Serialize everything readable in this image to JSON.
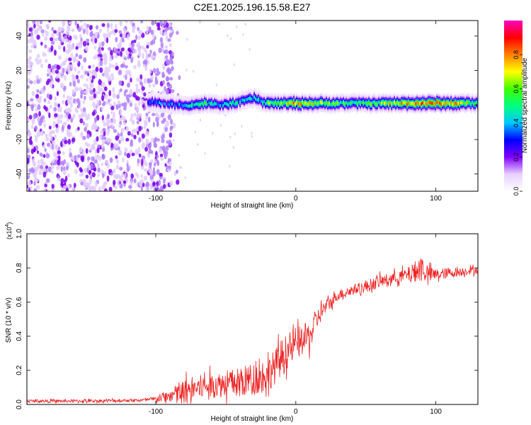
{
  "title": "C2E1.2025.196.15.58.E27",
  "chart_data": [
    {
      "type": "heatmap",
      "xlabel": "Height of straight line (km)",
      "ylabel": "Frequency (Hz)",
      "xlim": [
        -192,
        130
      ],
      "ylim": [
        -50,
        49
      ],
      "xticks": [
        -100,
        0,
        100
      ],
      "xtick_labels": [
        "-100",
        "0",
        "100"
      ],
      "yticks": [
        -40,
        -20,
        0,
        20,
        40
      ],
      "ytick_labels": [
        "-40",
        "-20",
        "0",
        "20",
        "40"
      ],
      "colorbar": {
        "label": "Normalized spectral amplitude",
        "range": [
          0,
          1
        ],
        "ticks": [
          0,
          0.2,
          0.4,
          0.6,
          0.8
        ],
        "tick_labels": [
          "0.0",
          "0.2",
          "0.4",
          "0.6",
          "0.8"
        ],
        "colormap": [
          "#ffffff",
          "#e8d0ff",
          "#8000ff",
          "#0000ff",
          "#00c8ff",
          "#00ff80",
          "#40ff00",
          "#ffff00",
          "#ff8000",
          "#ff0000",
          "#ff00c0"
        ]
      },
      "noise_region_x": [
        -192,
        -88
      ],
      "center_band": {
        "x": [
          -105,
          -95,
          -85,
          -75,
          -65,
          -55,
          -45,
          -35,
          -30,
          -25,
          -20,
          -10,
          0,
          10,
          20,
          40,
          60,
          80,
          100,
          130
        ],
        "center": [
          2,
          1,
          0,
          0,
          1,
          0,
          1,
          3,
          4,
          2,
          1,
          1,
          1,
          1,
          1,
          1,
          1,
          1,
          1,
          1
        ],
        "peak": [
          0.35,
          0.3,
          0.35,
          0.45,
          0.5,
          0.45,
          0.4,
          0.5,
          0.45,
          0.45,
          0.55,
          0.6,
          0.75,
          0.7,
          0.55,
          0.5,
          0.6,
          0.75,
          0.8,
          0.6
        ]
      }
    },
    {
      "type": "line",
      "xlabel": "Height of straight line (km)",
      "ylabel": "SNR (10 * v/v)",
      "y_multiplier": "(x10^4)",
      "xlim": [
        -192,
        130
      ],
      "ylim": [
        0,
        1.0
      ],
      "xticks": [
        -100,
        0,
        100
      ],
      "xtick_labels": [
        "-100",
        "0",
        "100"
      ],
      "yticks": [
        0,
        0.2,
        0.4,
        0.6,
        0.8,
        1.0
      ],
      "ytick_labels": [
        "0.0",
        "0.2",
        "0.4",
        "0.6",
        "0.8",
        "1.0"
      ],
      "series": [
        {
          "color": "#ee2222",
          "x": [
            -192,
            -150,
            -110,
            -100,
            -90,
            -80,
            -70,
            -60,
            -50,
            -40,
            -30,
            -20,
            -15,
            -10,
            -5,
            0,
            5,
            10,
            15,
            20,
            25,
            30,
            40,
            50,
            60,
            70,
            80,
            85,
            90,
            95,
            100,
            110,
            120,
            130
          ],
          "y": [
            0.02,
            0.02,
            0.025,
            0.03,
            0.05,
            0.08,
            0.1,
            0.11,
            0.12,
            0.13,
            0.15,
            0.18,
            0.22,
            0.28,
            0.32,
            0.35,
            0.38,
            0.4,
            0.5,
            0.56,
            0.6,
            0.64,
            0.67,
            0.69,
            0.72,
            0.74,
            0.76,
            0.78,
            0.8,
            0.76,
            0.76,
            0.77,
            0.78,
            0.79
          ],
          "spread": [
            0.015,
            0.015,
            0.015,
            0.03,
            0.06,
            0.12,
            0.12,
            0.12,
            0.13,
            0.15,
            0.16,
            0.17,
            0.17,
            0.18,
            0.17,
            0.15,
            0.15,
            0.14,
            0.1,
            0.08,
            0.06,
            0.05,
            0.05,
            0.06,
            0.06,
            0.06,
            0.07,
            0.1,
            0.14,
            0.08,
            0.06,
            0.05,
            0.04,
            0.04
          ]
        }
      ]
    }
  ]
}
